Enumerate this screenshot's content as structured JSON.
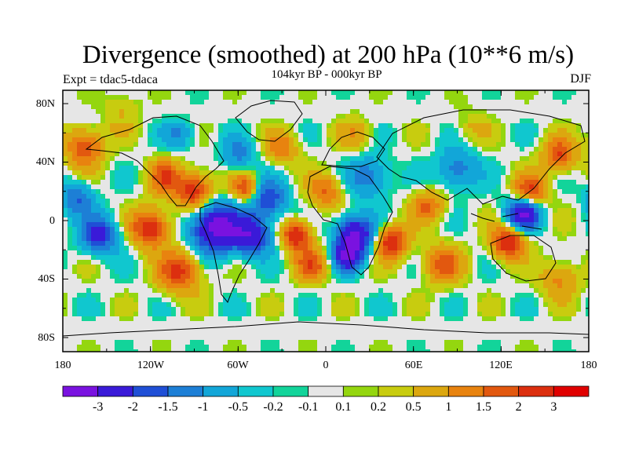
{
  "title": "Divergence (smoothed) at 200 hPa (10**6 m/s)",
  "subtitle": "104kyr BP - 000kyr BP",
  "left_label": "Expt = tdac5-tdaca",
  "season": "DJF",
  "axes": {
    "y_ticks": [
      "80N",
      "40N",
      "0",
      "40S",
      "80S"
    ],
    "x_ticks": [
      "180",
      "120W",
      "60W",
      "0",
      "60E",
      "120E",
      "180"
    ]
  },
  "colorbar": {
    "colors": [
      "#7a12e0",
      "#3a1ad8",
      "#1f4fd6",
      "#1d7fd6",
      "#12a6d8",
      "#10c7cf",
      "#12d49a",
      "#e6e6e6",
      "#94d60f",
      "#c8cc0f",
      "#dca70f",
      "#e8830f",
      "#e2580f",
      "#dc2f0f",
      "#e00000"
    ],
    "labels": [
      "-3",
      "-2",
      "-1.5",
      "-1",
      "-0.5",
      "-0.2",
      "-0.1",
      "0.1",
      "0.2",
      "0.5",
      "1",
      "1.5",
      "2",
      "3"
    ]
  },
  "field": {
    "description_lon_lat_amp_sigma": [
      [
        -75,
        -5,
        -3.4,
        12
      ],
      [
        -50,
        -10,
        -2.5,
        9
      ],
      [
        20,
        -10,
        -3.2,
        9
      ],
      [
        15,
        -25,
        -2.5,
        7
      ],
      [
        135,
        5,
        -3.2,
        8
      ],
      [
        -155,
        -10,
        -2.2,
        9
      ],
      [
        -170,
        15,
        -1.5,
        8
      ],
      [
        -40,
        15,
        -2.0,
        9
      ],
      [
        30,
        30,
        -1.4,
        10
      ],
      [
        90,
        35,
        -1.4,
        10
      ],
      [
        -60,
        45,
        -1.2,
        8
      ],
      [
        -100,
        60,
        -1.0,
        8
      ],
      [
        -90,
        20,
        2.5,
        9
      ],
      [
        -55,
        22,
        2.0,
        7
      ],
      [
        -120,
        -5,
        2.6,
        9
      ],
      [
        -20,
        -10,
        2.6,
        7
      ],
      [
        45,
        -15,
        2.5,
        8
      ],
      [
        125,
        -15,
        2.6,
        8
      ],
      [
        140,
        20,
        2.2,
        8
      ],
      [
        -100,
        -35,
        2.2,
        10
      ],
      [
        -10,
        -30,
        1.8,
        8
      ],
      [
        80,
        -30,
        1.8,
        9
      ],
      [
        0,
        20,
        1.6,
        8
      ],
      [
        -165,
        50,
        2.0,
        9
      ],
      [
        160,
        45,
        2.0,
        8
      ],
      [
        70,
        10,
        1.5,
        8
      ],
      [
        -110,
        30,
        1.8,
        8
      ],
      [
        -140,
        75,
        1.0,
        9
      ],
      [
        20,
        60,
        0.8,
        9
      ],
      [
        100,
        65,
        0.6,
        9
      ],
      [
        -30,
        50,
        1.3,
        8
      ],
      [
        160,
        -40,
        1.2,
        9
      ]
    ]
  }
}
